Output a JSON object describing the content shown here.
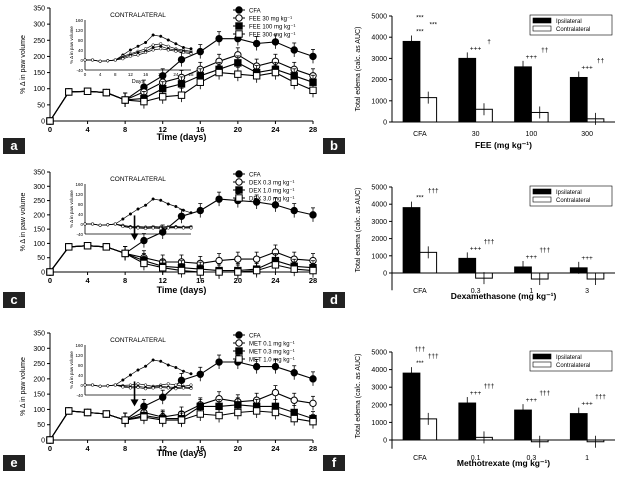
{
  "chart_data": [
    {
      "id": "a",
      "type": "line",
      "xlabel": "Time (days)",
      "ylabel": "% Δ in paw volume",
      "xlim": [
        0,
        28
      ],
      "ylim": [
        0,
        350
      ],
      "xticks": [
        0,
        4,
        8,
        12,
        16,
        20,
        24,
        28
      ],
      "yticks": [
        0,
        50,
        100,
        150,
        200,
        250,
        300,
        350
      ],
      "x": [
        0,
        2,
        4,
        6,
        8,
        10,
        12,
        14,
        16,
        18,
        20,
        22,
        24,
        26,
        28
      ],
      "legend_position": "top-right",
      "series": [
        {
          "name": "CFA",
          "marker": "filled-circle",
          "values": [
            0,
            90,
            92,
            88,
            65,
            105,
            140,
            190,
            215,
            255,
            255,
            240,
            245,
            220,
            200
          ]
        },
        {
          "name": "FEE 30 mg kg⁻¹",
          "marker": "open-circle",
          "values": [
            0,
            90,
            92,
            88,
            65,
            90,
            120,
            135,
            160,
            185,
            205,
            170,
            185,
            160,
            140
          ]
        },
        {
          "name": "FEE 100 mg kg⁻¹",
          "marker": "filled-square",
          "values": [
            0,
            90,
            92,
            88,
            65,
            70,
            100,
            115,
            140,
            160,
            180,
            150,
            160,
            140,
            120
          ]
        },
        {
          "name": "FEE 300 mg kg⁻¹",
          "marker": "open-square",
          "values": [
            0,
            90,
            92,
            88,
            65,
            60,
            75,
            80,
            120,
            150,
            145,
            140,
            150,
            120,
            95
          ]
        }
      ],
      "inset": {
        "title": "CONTRALATERAL",
        "ylabel": "% Δ in paw volume",
        "xlabel": "Days",
        "xlim": [
          0,
          28
        ],
        "ylim": [
          -40,
          160
        ],
        "xticks": [
          0,
          4,
          8,
          12,
          16,
          20,
          24,
          28
        ],
        "yticks": [
          -40,
          0,
          40,
          80,
          120,
          160
        ],
        "x": [
          0,
          2,
          4,
          6,
          8,
          10,
          12,
          14,
          16,
          18,
          20,
          22,
          24,
          26,
          28
        ],
        "series": [
          [
            0,
            0,
            -5,
            -3,
            0,
            20,
            40,
            55,
            70,
            100,
            95,
            80,
            65,
            50,
            45
          ],
          [
            0,
            0,
            -5,
            -3,
            0,
            15,
            25,
            35,
            45,
            60,
            65,
            55,
            45,
            40,
            35
          ],
          [
            0,
            0,
            -5,
            -3,
            0,
            10,
            20,
            30,
            35,
            50,
            55,
            45,
            40,
            35,
            30
          ],
          [
            0,
            0,
            -5,
            -3,
            0,
            5,
            15,
            20,
            30,
            40,
            45,
            40,
            35,
            30,
            25
          ]
        ]
      }
    },
    {
      "id": "b",
      "type": "bar",
      "xlabel": "FEE (mg kg⁻¹)",
      "ylabel": "Total edema (calc. as AUC)",
      "ylim": [
        0,
        5000
      ],
      "yticks": [
        0,
        1000,
        2000,
        3000,
        4000,
        5000
      ],
      "categories": [
        "CFA",
        "30",
        "100",
        "300"
      ],
      "legend_position": "top-right",
      "series": [
        {
          "name": "Ipsilateral",
          "fill": "#000000",
          "values": [
            3800,
            3000,
            2600,
            2100
          ]
        },
        {
          "name": "Contralateral",
          "fill": "#ffffff",
          "values": [
            1150,
            600,
            450,
            150
          ]
        }
      ],
      "annotations": [
        "***",
        "+++",
        "+++",
        "+++",
        "***",
        "†",
        "††",
        "††",
        "***"
      ]
    },
    {
      "id": "c",
      "type": "line",
      "xlabel": "Time (days)",
      "ylabel": "% Δ in paw volume",
      "xlim": [
        0,
        28
      ],
      "ylim": [
        0,
        350
      ],
      "xticks": [
        0,
        4,
        8,
        12,
        16,
        20,
        24,
        28
      ],
      "yticks": [
        0,
        50,
        100,
        150,
        200,
        250,
        300,
        350
      ],
      "x": [
        0,
        2,
        4,
        6,
        8,
        10,
        12,
        14,
        16,
        18,
        20,
        22,
        24,
        26,
        28
      ],
      "legend_position": "top-right",
      "series": [
        {
          "name": "CFA",
          "marker": "filled-circle",
          "values": [
            0,
            88,
            92,
            88,
            65,
            110,
            140,
            195,
            215,
            255,
            250,
            245,
            235,
            215,
            200
          ]
        },
        {
          "name": "DEX 0.3 mg kg⁻¹",
          "marker": "open-circle",
          "values": [
            0,
            88,
            92,
            88,
            65,
            50,
            35,
            35,
            30,
            40,
            45,
            45,
            70,
            45,
            40
          ]
        },
        {
          "name": "DEX 1.0 mg kg⁻¹",
          "marker": "filled-square",
          "values": [
            0,
            88,
            92,
            88,
            65,
            40,
            20,
            15,
            10,
            5,
            5,
            10,
            40,
            20,
            15
          ]
        },
        {
          "name": "DEX 3.0 mg kg⁻¹",
          "marker": "open-square",
          "values": [
            0,
            88,
            92,
            88,
            65,
            30,
            15,
            5,
            0,
            0,
            0,
            5,
            25,
            10,
            5
          ]
        }
      ],
      "inset": {
        "title": "CONTRALATERAL",
        "ylabel": "% Δ in paw volume",
        "xlabel": "",
        "xlim": [
          0,
          28
        ],
        "ylim": [
          -40,
          160
        ],
        "xticks": [],
        "yticks": [
          -40,
          0,
          40,
          80,
          120,
          160
        ],
        "x": [
          0,
          2,
          4,
          6,
          8,
          10,
          12,
          14,
          16,
          18,
          20,
          22,
          24,
          26,
          28
        ],
        "series": [
          [
            0,
            0,
            -5,
            -3,
            0,
            20,
            40,
            60,
            75,
            100,
            95,
            80,
            70,
            55,
            45
          ],
          [
            0,
            0,
            -5,
            -3,
            0,
            -5,
            -10,
            -10,
            -12,
            -10,
            -12,
            -10,
            -10,
            -12,
            -10
          ],
          [
            0,
            0,
            -5,
            -3,
            0,
            -8,
            -12,
            -14,
            -15,
            -14,
            -15,
            -14,
            -12,
            -14,
            -14
          ],
          [
            0,
            0,
            -5,
            -3,
            0,
            -10,
            -15,
            -16,
            -18,
            -16,
            -18,
            -16,
            -15,
            -16,
            -16
          ]
        ]
      }
    },
    {
      "id": "d",
      "type": "bar",
      "xlabel": "Dexamethasone (mg kg⁻¹)",
      "ylabel": "Total edema (calc. as AUC)",
      "ylim": [
        -1000,
        5000
      ],
      "yticks": [
        0,
        1000,
        2000,
        3000,
        4000,
        5000
      ],
      "categories": [
        "CFA",
        "0.3",
        "1",
        "3"
      ],
      "legend_position": "top-right",
      "series": [
        {
          "name": "Ipsilateral",
          "fill": "#000000",
          "values": [
            3800,
            850,
            350,
            300
          ]
        },
        {
          "name": "Contralateral",
          "fill": "#ffffff",
          "values": [
            1200,
            -300,
            -350,
            -350
          ]
        }
      ],
      "annotations": [
        "***",
        "+++",
        "+++",
        "+++",
        "†††",
        "†††",
        "†††"
      ]
    },
    {
      "id": "e",
      "type": "line",
      "xlabel": "Time (days)",
      "ylabel": "% Δ in paw volume",
      "xlim": [
        0,
        28
      ],
      "ylim": [
        0,
        350
      ],
      "xticks": [
        0,
        4,
        8,
        12,
        16,
        20,
        24,
        28
      ],
      "yticks": [
        0,
        50,
        100,
        150,
        200,
        250,
        300,
        350
      ],
      "x": [
        0,
        2,
        4,
        6,
        8,
        10,
        12,
        14,
        16,
        18,
        20,
        22,
        24,
        26,
        28
      ],
      "legend_position": "top-right",
      "series": [
        {
          "name": "CFA",
          "marker": "filled-circle",
          "values": [
            0,
            95,
            90,
            85,
            65,
            110,
            140,
            195,
            215,
            255,
            255,
            240,
            240,
            220,
            200
          ]
        },
        {
          "name": "MET 0.1 mg kg⁻¹",
          "marker": "open-circle",
          "values": [
            0,
            95,
            90,
            85,
            65,
            90,
            75,
            85,
            115,
            135,
            125,
            130,
            155,
            130,
            120
          ]
        },
        {
          "name": "MET 0.3 mg kg⁻¹",
          "marker": "filled-square",
          "values": [
            0,
            95,
            90,
            85,
            65,
            80,
            70,
            70,
            110,
            110,
            115,
            110,
            110,
            90,
            70
          ]
        },
        {
          "name": "MET 1.0 mg kg⁻¹",
          "marker": "open-square",
          "values": [
            0,
            95,
            90,
            85,
            65,
            75,
            65,
            65,
            85,
            80,
            90,
            95,
            90,
            70,
            60
          ]
        }
      ],
      "inset": {
        "title": "CONTRALATERAL",
        "ylabel": "% Δ in paw volume",
        "xlabel": "",
        "xlim": [
          0,
          28
        ],
        "ylim": [
          -40,
          160
        ],
        "xticks": [],
        "yticks": [
          -40,
          0,
          40,
          80,
          120,
          160
        ],
        "x": [
          0,
          2,
          4,
          6,
          8,
          10,
          12,
          14,
          16,
          18,
          20,
          22,
          24,
          26,
          28
        ],
        "series": [
          [
            0,
            0,
            -5,
            -3,
            0,
            20,
            40,
            60,
            75,
            100,
            95,
            80,
            70,
            55,
            45
          ],
          [
            0,
            0,
            -5,
            -3,
            0,
            -2,
            0,
            5,
            0,
            -5,
            0,
            5,
            0,
            -5,
            0
          ],
          [
            0,
            0,
            -5,
            -3,
            0,
            -5,
            -8,
            -5,
            -10,
            -8,
            -5,
            -8,
            -10,
            -8,
            -10
          ],
          [
            0,
            0,
            -5,
            -3,
            0,
            -8,
            -12,
            -10,
            -15,
            -12,
            -10,
            -12,
            -15,
            -12,
            -14
          ]
        ]
      }
    },
    {
      "id": "f",
      "type": "bar",
      "xlabel": "Methotrexate (mg kg⁻¹)",
      "ylabel": "Total edema (calc. as AUC)",
      "ylim": [
        -500,
        5000
      ],
      "yticks": [
        0,
        1000,
        2000,
        3000,
        4000,
        5000
      ],
      "categories": [
        "CFA",
        "0.1",
        "0.3",
        "1"
      ],
      "legend_position": "top-right",
      "series": [
        {
          "name": "Ipsilateral",
          "fill": "#000000",
          "values": [
            3800,
            2100,
            1700,
            1500
          ]
        },
        {
          "name": "Contralateral",
          "fill": "#ffffff",
          "values": [
            1200,
            150,
            -100,
            -100
          ]
        }
      ],
      "annotations": [
        "***",
        "+++",
        "+++",
        "+++",
        "†††",
        "†††",
        "†††",
        "†††",
        "†††"
      ]
    }
  ]
}
